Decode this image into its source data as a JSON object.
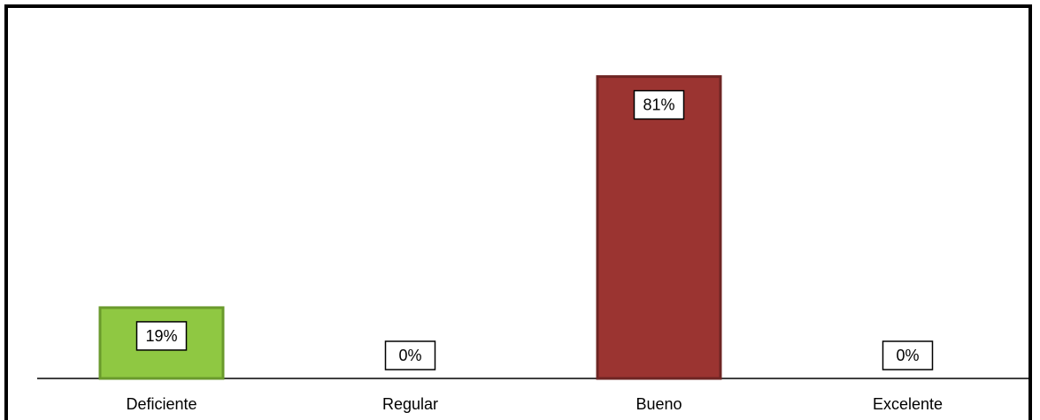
{
  "chart_data": {
    "type": "bar",
    "title": "",
    "xlabel": "",
    "ylabel": "",
    "categories": [
      "Deficiente",
      "Regular",
      "Bueno",
      "Excelente"
    ],
    "values": [
      19,
      0,
      81,
      0
    ],
    "data_labels": [
      "19%",
      "0%",
      "81%",
      "0%"
    ],
    "ylim": [
      0,
      100
    ],
    "grid": false,
    "legend": "none",
    "colors": [
      "#8fc842",
      "#8fc842",
      "#9b3431",
      "#9b3431"
    ],
    "bar_border_colors": [
      "#6a9a2c",
      "#6a9a2c",
      "#6e2523",
      "#6e2523"
    ]
  }
}
